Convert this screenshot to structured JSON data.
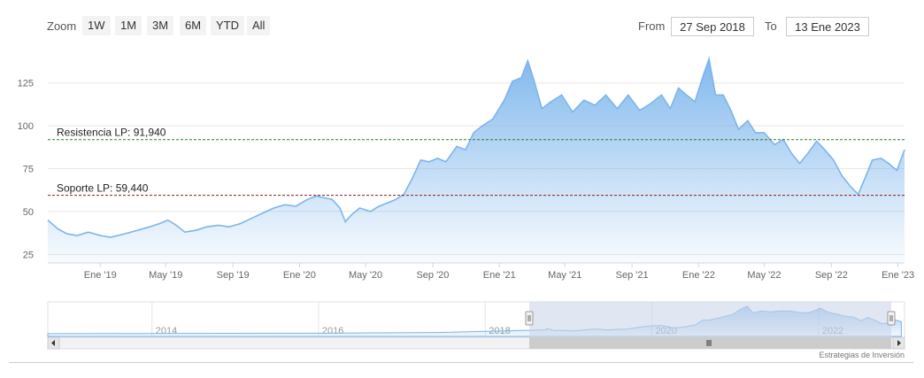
{
  "toolbar": {
    "zoom_label": "Zoom",
    "zoom_buttons": [
      "1W",
      "1M",
      "3M",
      "6M",
      "YTD",
      "All"
    ],
    "from_label": "From",
    "from_value": "27 Sep 2018",
    "to_label": "To",
    "to_value": "13 Ene 2023"
  },
  "credit": "Estrategias de Inversión",
  "colors": {
    "area_top": "#7cb5ec",
    "line": "#7cb5ec",
    "resistance": "#2e7d32",
    "support": "#8b1a1a",
    "navigator_mask": "#c8d3e8"
  },
  "chart_data": {
    "type": "area",
    "title": "",
    "xlabel": "",
    "ylabel": "",
    "ylim": [
      20,
      145
    ],
    "y_ticks": [
      25,
      50,
      75,
      100,
      125
    ],
    "x_range": [
      "2018-09-27",
      "2023-01-13"
    ],
    "x_ticks": [
      {
        "date": "2019-01-01",
        "label": "Ene '19"
      },
      {
        "date": "2019-05-01",
        "label": "May '19"
      },
      {
        "date": "2019-09-01",
        "label": "Sep '19"
      },
      {
        "date": "2020-01-01",
        "label": "Ene '20"
      },
      {
        "date": "2020-05-01",
        "label": "May '20"
      },
      {
        "date": "2020-09-01",
        "label": "Sep '20"
      },
      {
        "date": "2021-01-01",
        "label": "Ene '21"
      },
      {
        "date": "2021-05-01",
        "label": "May '21"
      },
      {
        "date": "2021-09-01",
        "label": "Sep '21"
      },
      {
        "date": "2022-01-01",
        "label": "Ene '22"
      },
      {
        "date": "2022-05-01",
        "label": "May '22"
      },
      {
        "date": "2022-09-01",
        "label": "Sep '22"
      },
      {
        "date": "2023-01-01",
        "label": "Ene '23"
      }
    ],
    "plot_lines": [
      {
        "label": "Resistencia LP: 91,940",
        "value": 91.94,
        "style": "dashed",
        "color": "#2e7d32"
      },
      {
        "label": "Soporte LP: 59,440",
        "value": 59.44,
        "style": "dashed",
        "color": "#8b1a1a"
      }
    ],
    "series": [
      {
        "values": [
          [
            "2018-09-27",
            45
          ],
          [
            "2018-10-15",
            40
          ],
          [
            "2018-11-01",
            37
          ],
          [
            "2018-11-20",
            36
          ],
          [
            "2018-12-10",
            38
          ],
          [
            "2019-01-01",
            36
          ],
          [
            "2019-01-20",
            35
          ],
          [
            "2019-02-15",
            37
          ],
          [
            "2019-03-10",
            39
          ],
          [
            "2019-04-01",
            41
          ],
          [
            "2019-04-20",
            43
          ],
          [
            "2019-05-05",
            45
          ],
          [
            "2019-05-20",
            42
          ],
          [
            "2019-06-05",
            38
          ],
          [
            "2019-06-25",
            39
          ],
          [
            "2019-07-15",
            41
          ],
          [
            "2019-08-05",
            42
          ],
          [
            "2019-08-25",
            41
          ],
          [
            "2019-09-15",
            43
          ],
          [
            "2019-10-05",
            46
          ],
          [
            "2019-10-25",
            49
          ],
          [
            "2019-11-15",
            52
          ],
          [
            "2019-12-05",
            54
          ],
          [
            "2019-12-25",
            53
          ],
          [
            "2020-01-15",
            57
          ],
          [
            "2020-02-01",
            59
          ],
          [
            "2020-02-15",
            58
          ],
          [
            "2020-03-01",
            57
          ],
          [
            "2020-03-15",
            52
          ],
          [
            "2020-03-25",
            44
          ],
          [
            "2020-04-05",
            48
          ],
          [
            "2020-04-20",
            52
          ],
          [
            "2020-05-10",
            50
          ],
          [
            "2020-05-25",
            53
          ],
          [
            "2020-06-10",
            55
          ],
          [
            "2020-06-25",
            57
          ],
          [
            "2020-07-10",
            60
          ],
          [
            "2020-07-25",
            69
          ],
          [
            "2020-08-10",
            80
          ],
          [
            "2020-08-25",
            79
          ],
          [
            "2020-09-10",
            81
          ],
          [
            "2020-09-25",
            79
          ],
          [
            "2020-10-15",
            88
          ],
          [
            "2020-10-31",
            86
          ],
          [
            "2020-11-15",
            96
          ],
          [
            "2020-12-01",
            100
          ],
          [
            "2020-12-20",
            104
          ],
          [
            "2021-01-10",
            115
          ],
          [
            "2021-01-25",
            126
          ],
          [
            "2021-02-10",
            128
          ],
          [
            "2021-02-22",
            138
          ],
          [
            "2021-03-05",
            127
          ],
          [
            "2021-03-20",
            110
          ],
          [
            "2021-04-05",
            114
          ],
          [
            "2021-04-25",
            118
          ],
          [
            "2021-05-15",
            108
          ],
          [
            "2021-06-05",
            115
          ],
          [
            "2021-06-25",
            112
          ],
          [
            "2021-07-15",
            118
          ],
          [
            "2021-08-05",
            110
          ],
          [
            "2021-08-25",
            118
          ],
          [
            "2021-09-15",
            109
          ],
          [
            "2021-10-05",
            113
          ],
          [
            "2021-10-25",
            118
          ],
          [
            "2021-11-10",
            110
          ],
          [
            "2021-11-25",
            122
          ],
          [
            "2021-12-10",
            118
          ],
          [
            "2021-12-25",
            114
          ],
          [
            "2022-01-10",
            130
          ],
          [
            "2022-01-20",
            139
          ],
          [
            "2022-02-01",
            118
          ],
          [
            "2022-02-15",
            118
          ],
          [
            "2022-03-01",
            109
          ],
          [
            "2022-03-15",
            98
          ],
          [
            "2022-04-01",
            103
          ],
          [
            "2022-04-15",
            96
          ],
          [
            "2022-05-01",
            96
          ],
          [
            "2022-05-20",
            89
          ],
          [
            "2022-06-05",
            92
          ],
          [
            "2022-06-20",
            84
          ],
          [
            "2022-07-05",
            78
          ],
          [
            "2022-07-20",
            84
          ],
          [
            "2022-08-05",
            91
          ],
          [
            "2022-08-20",
            86
          ],
          [
            "2022-09-05",
            80
          ],
          [
            "2022-09-20",
            71
          ],
          [
            "2022-10-05",
            65
          ],
          [
            "2022-10-20",
            60
          ],
          [
            "2022-11-01",
            69
          ],
          [
            "2022-11-15",
            80
          ],
          [
            "2022-12-01",
            81
          ],
          [
            "2022-12-15",
            78
          ],
          [
            "2022-12-30",
            74
          ],
          [
            "2023-01-13",
            86
          ]
        ]
      }
    ],
    "navigator": {
      "x_ticks": [
        "2014",
        "2016",
        "2018",
        "2020",
        "2022"
      ],
      "selected_from": "2018-09-27",
      "selected_to": "2023-01-13"
    }
  }
}
